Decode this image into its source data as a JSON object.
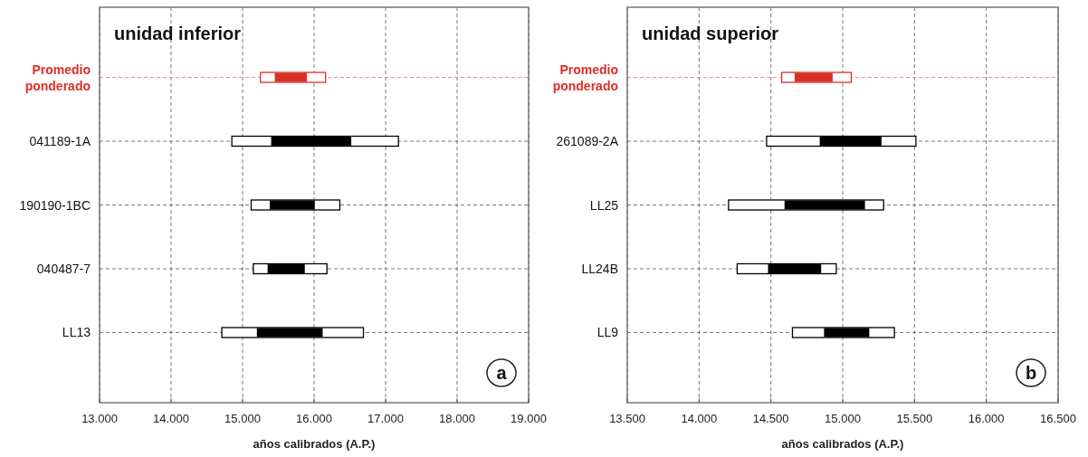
{
  "chart_data": [
    {
      "type": "bar",
      "orientation": "horizontal",
      "title": "unidad inferior",
      "xlabel": "años calibrados (A.P.)",
      "categories": [
        "Promedio ponderado",
        "041189-1A",
        "190190-1BC",
        "040487-7",
        "LL13"
      ],
      "series": [
        {
          "base": [
            15250,
            14850,
            15120,
            15150,
            14710
          ],
          "values": [
            910,
            2330,
            1240,
            1030,
            1980
          ],
          "colors": [
            "#d93025",
            "#000000",
            "#000000",
            "#000000",
            "#000000"
          ]
        },
        {
          "base": [
            15450,
            15400,
            15380,
            15350,
            15200
          ],
          "values": [
            450,
            1120,
            630,
            520,
            920
          ],
          "colors": [
            "#d93025",
            "#000000",
            "#000000",
            "#000000",
            "#000000"
          ]
        }
      ],
      "xlim": [
        13000,
        19000
      ],
      "xticks": [
        {
          "value": 13000,
          "label": "13.000"
        },
        {
          "value": 14000,
          "label": "14.000"
        },
        {
          "value": 15000,
          "label": "15.000"
        },
        {
          "value": 16000,
          "label": "16.000"
        },
        {
          "value": 17000,
          "label": "17.000"
        },
        {
          "value": 18000,
          "label": "18.000"
        },
        {
          "value": 19000,
          "label": "19.000"
        }
      ],
      "grid": true,
      "ref_lines": [
        {
          "axis": "y",
          "value": "Promedio ponderado",
          "color": "#f08080",
          "line_style": "dashed"
        }
      ],
      "annotations": [
        "a"
      ]
    },
    {
      "type": "bar",
      "orientation": "horizontal",
      "title": "unidad superior",
      "xlabel": "años calibrados (A.P.)",
      "categories": [
        "Promedio ponderado",
        "261089-2A",
        "LL25",
        "LL24B",
        "LL9"
      ],
      "series": [
        {
          "base": [
            14575,
            14470,
            14205,
            14265,
            14650
          ],
          "values": [
            485,
            1040,
            1080,
            690,
            710
          ],
          "colors": [
            "#d93025",
            "#000000",
            "#000000",
            "#000000",
            "#000000"
          ]
        },
        {
          "base": [
            14665,
            14840,
            14595,
            14480,
            14870
          ],
          "values": [
            265,
            430,
            560,
            370,
            315
          ],
          "colors": [
            "#d93025",
            "#000000",
            "#000000",
            "#000000",
            "#000000"
          ]
        }
      ],
      "xlim": [
        13500,
        16500
      ],
      "xticks": [
        {
          "value": 13500,
          "label": "13.500"
        },
        {
          "value": 14000,
          "label": "14.000"
        },
        {
          "value": 14500,
          "label": "14.500"
        },
        {
          "value": 15000,
          "label": "15.000"
        },
        {
          "value": 15500,
          "label": "15.500"
        },
        {
          "value": 16000,
          "label": "16.000"
        },
        {
          "value": 16500,
          "label": "16.500"
        }
      ],
      "grid": true,
      "ref_lines": [
        {
          "axis": "y",
          "value": "Promedio ponderado",
          "color": "#f08080",
          "line_style": "dashed"
        }
      ],
      "annotations": [
        "b"
      ]
    }
  ]
}
